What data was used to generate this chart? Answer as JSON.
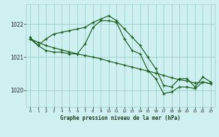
{
  "title": "Graphe pression niveau de la mer (hPa)",
  "background_color": "#cff0f0",
  "grid_color": "#99cccc",
  "line_color": "#1a5c1a",
  "marker": "+",
  "xlim": [
    -0.5,
    23.5
  ],
  "ylim": [
    1019.5,
    1022.6
  ],
  "yticks": [
    1020,
    1021,
    1022
  ],
  "xticks": [
    0,
    1,
    2,
    3,
    4,
    5,
    6,
    7,
    8,
    9,
    10,
    11,
    12,
    13,
    14,
    15,
    16,
    17,
    18,
    19,
    20,
    21,
    22,
    23
  ],
  "series": [
    [
      1021.6,
      1021.35,
      1021.55,
      1021.7,
      1021.75,
      1021.8,
      1021.85,
      1021.9,
      1022.05,
      1022.15,
      1022.25,
      1022.1,
      1021.85,
      1021.6,
      1021.35,
      1021.0,
      1020.65,
      1020.15,
      1020.1,
      1020.35,
      1020.35,
      1020.1,
      1020.4,
      1020.25
    ],
    [
      1021.55,
      1021.45,
      1021.35,
      1021.28,
      1021.22,
      1021.16,
      1021.1,
      1021.05,
      1021.0,
      1020.95,
      1020.88,
      1020.82,
      1020.76,
      1020.7,
      1020.64,
      1020.58,
      1020.52,
      1020.45,
      1020.38,
      1020.32,
      1020.28,
      1020.22,
      1020.25,
      1020.2
    ],
    [
      1021.55,
      1021.35,
      1021.2,
      1021.15,
      1021.15,
      1021.1,
      1021.1,
      1021.4,
      1021.9,
      1022.1,
      1022.1,
      1022.05,
      1021.55,
      1021.2,
      1021.1,
      1020.6,
      1020.35,
      1019.9,
      1019.95,
      1020.1,
      1020.1,
      1020.05,
      1020.25,
      1020.2
    ]
  ]
}
